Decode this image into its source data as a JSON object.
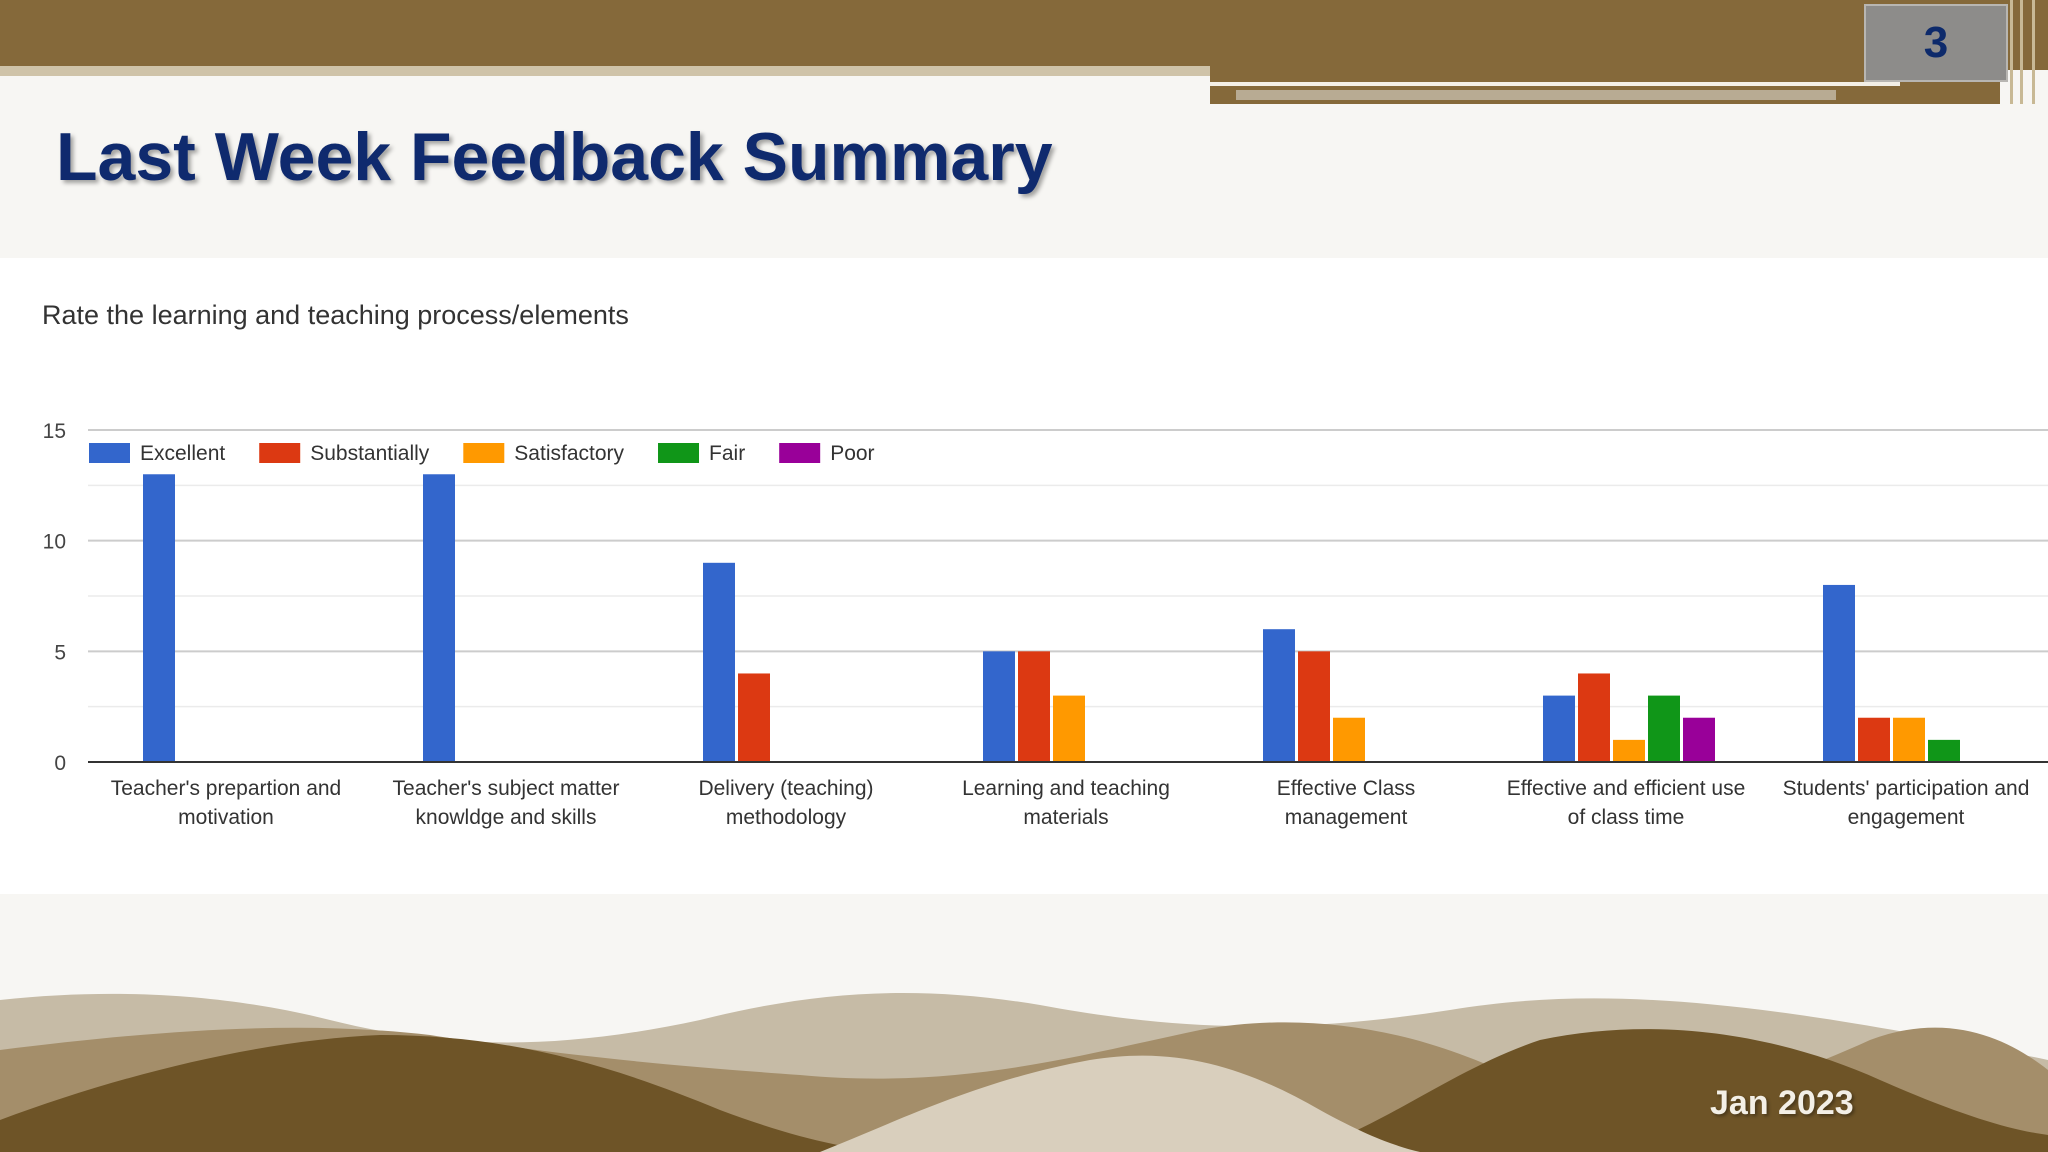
{
  "slide": {
    "page_number": "3",
    "title": "Last Week Feedback Summary",
    "footer_date": "Jan 2023"
  },
  "colors": {
    "header_band": "#85693a",
    "title_text": "#0f2a6e",
    "wave_dark": "#6e5427",
    "wave_light": "#b8ab93"
  },
  "chart_data": {
    "type": "bar",
    "title": "Rate the learning and teaching process/elements",
    "xlabel": "",
    "ylabel": "",
    "ylim": [
      0,
      15
    ],
    "yticks": [
      "0",
      "5",
      "10",
      "15"
    ],
    "grid": true,
    "legend_position": "top-left",
    "categories": [
      [
        "Teacher's prepartion and",
        "motivation"
      ],
      [
        "Teacher's subject matter",
        "knowldge and skills"
      ],
      [
        "Delivery (teaching)",
        "methodology"
      ],
      [
        "Learning and teaching",
        "materials"
      ],
      [
        "Effective Class",
        "management"
      ],
      [
        "Effective and efficient use",
        "of class time"
      ],
      [
        "Students' participation and",
        "engagement"
      ]
    ],
    "series": [
      {
        "name": "Excellent",
        "color": "#3366cc",
        "values": [
          13,
          13,
          9,
          5,
          6,
          3,
          8
        ]
      },
      {
        "name": "Substantially",
        "color": "#dc3912",
        "values": [
          0,
          0,
          4,
          5,
          5,
          4,
          2
        ]
      },
      {
        "name": "Satisfactory",
        "color": "#ff9900",
        "values": [
          0,
          0,
          0,
          3,
          2,
          1,
          2
        ]
      },
      {
        "name": "Fair",
        "color": "#109618",
        "values": [
          0,
          0,
          0,
          0,
          0,
          3,
          1
        ]
      },
      {
        "name": "Poor",
        "color": "#990099",
        "values": [
          0,
          0,
          0,
          0,
          0,
          2,
          0
        ]
      }
    ]
  }
}
